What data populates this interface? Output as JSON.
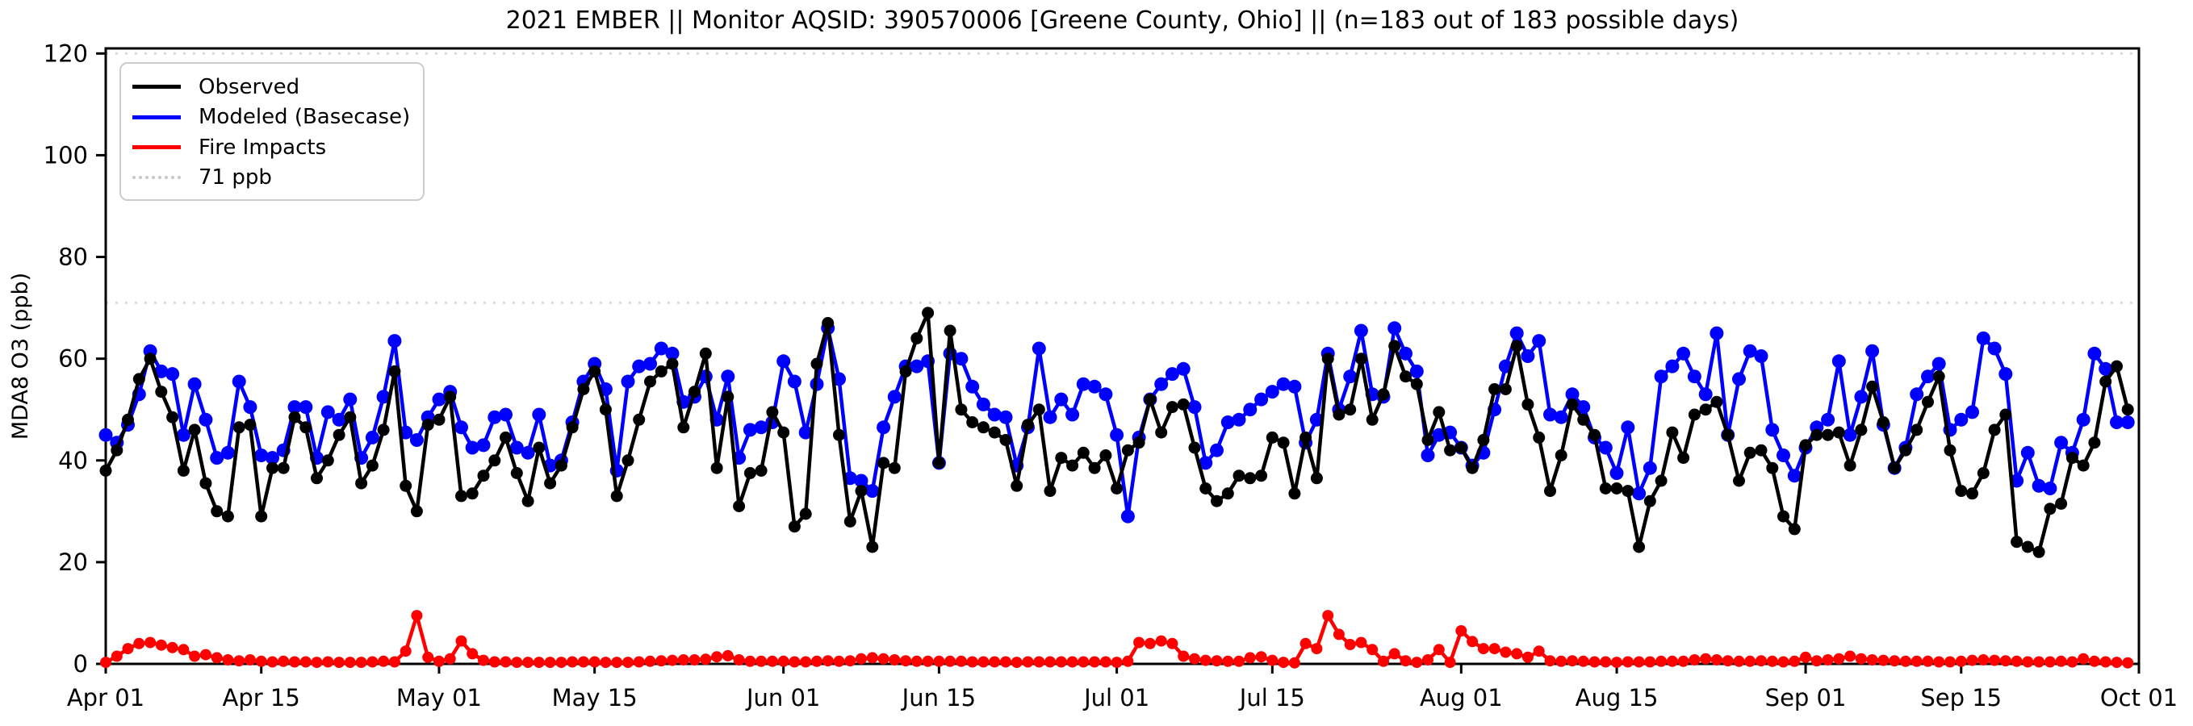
{
  "title": "2021 EMBER || Monitor AQSID: 390570006 [Greene County, Ohio] || (n=183 out of 183 possible days)",
  "colors": {
    "observed": "#000000",
    "modeled": "#0000ff",
    "fire": "#ff0000",
    "threshold": "#d9d9d9",
    "axis": "#000000"
  },
  "chart_data": {
    "type": "line",
    "x_start": "2021-04-01",
    "x_frequency": "daily",
    "n_points": 183,
    "title": "2021 EMBER || Monitor AQSID: 390570006 [Greene County, Ohio] || (n=183 out of 183 possible days)",
    "xlabel": "",
    "ylabel": "MDA8 O3 (ppb)",
    "ylim": [
      0,
      121
    ],
    "yticks": [
      0,
      20,
      40,
      60,
      80,
      100,
      120
    ],
    "xtick_labels": [
      "Apr 01",
      "Apr 15",
      "May 01",
      "May 15",
      "Jun 01",
      "Jun 15",
      "Jul 01",
      "Jul 15",
      "Aug 01",
      "Aug 15",
      "Sep 01",
      "Sep 15",
      "Oct 01"
    ],
    "xtick_days": [
      0,
      14,
      30,
      44,
      61,
      75,
      91,
      105,
      122,
      136,
      153,
      167,
      183
    ],
    "grid": false,
    "legend_position": "upper left",
    "reference_lines": [
      {
        "label": "71 ppb",
        "value": 71,
        "style": "dotted",
        "color": "#d9d9d9"
      },
      {
        "label": "",
        "value": 120,
        "style": "dotted",
        "color": "#d9d9d9"
      }
    ],
    "series": [
      {
        "name": "Observed",
        "color": "#000000",
        "values": [
          38,
          42,
          48,
          56,
          60,
          53.5,
          48.5,
          38,
          46,
          35.5,
          30,
          29,
          46.5,
          47,
          29,
          38.5,
          38.5,
          48.5,
          46.5,
          36.5,
          40,
          45,
          48.5,
          35.5,
          39,
          46,
          57.5,
          35,
          30,
          47,
          48,
          52.5,
          33,
          33.5,
          37,
          40,
          44.5,
          37.5,
          32,
          42.5,
          35.5,
          39,
          46.5,
          54,
          57.5,
          50,
          33,
          40,
          48,
          55.5,
          57.5,
          59,
          46.5,
          53.5,
          61,
          38.5,
          52.5,
          31,
          37.5,
          38,
          49.5,
          45.5,
          27,
          29.5,
          59,
          67,
          45,
          28,
          34,
          23,
          39.5,
          38.5,
          57.5,
          64,
          69,
          39.5,
          65.5,
          50,
          47.5,
          46.5,
          45.5,
          44,
          35,
          47,
          50,
          34,
          40.5,
          39,
          41.5,
          38.5,
          41,
          34.5,
          42,
          43.5,
          52,
          45.5,
          50.5,
          51,
          42.5,
          34.5,
          32,
          33.5,
          37,
          36.5,
          37,
          44.5,
          43.5,
          33.5,
          44.5,
          36.5,
          60,
          49,
          50,
          60,
          48,
          53,
          62.5,
          56.5,
          55,
          44,
          49.5,
          42,
          42.5,
          38.5,
          44,
          54,
          54,
          62.5,
          51,
          44.5,
          34,
          41,
          51,
          48,
          45,
          34.5,
          34.5,
          34,
          23,
          32,
          36,
          45.5,
          40.5,
          49,
          50,
          51.5,
          45,
          36,
          41.5,
          42,
          38.5,
          29,
          26.5,
          43,
          45,
          45,
          45.5,
          39,
          46,
          54.5,
          47.5,
          38.5,
          42,
          46,
          51.5,
          56.5,
          42,
          34,
          33.5,
          37.5,
          46,
          49,
          24,
          23,
          22,
          30.5,
          31.5,
          40.5,
          39,
          43.5,
          55.5,
          58.5,
          50
        ]
      },
      {
        "name": "Modeled (Basecase)",
        "color": "#0000ff",
        "values": [
          45,
          43.5,
          47,
          53,
          61.5,
          57.5,
          57,
          45,
          55,
          48,
          40.5,
          41.5,
          55.5,
          50.5,
          41,
          40.5,
          42,
          50.5,
          50.5,
          40.5,
          49.5,
          48,
          52,
          40.5,
          44.5,
          52.5,
          63.5,
          45.5,
          44,
          48.5,
          52,
          53.5,
          46.5,
          42.5,
          43,
          48.5,
          49,
          42.5,
          41.5,
          49,
          39,
          40,
          47.5,
          55.5,
          59,
          54,
          38,
          55.5,
          58.5,
          59,
          62,
          61,
          51.5,
          52.5,
          56.5,
          48,
          56.5,
          40.5,
          46,
          46.5,
          47.5,
          59.5,
          55.5,
          45.5,
          55,
          66,
          56,
          36.5,
          36,
          34,
          46.5,
          52.5,
          58.5,
          58.5,
          59.5,
          39.5,
          61,
          60,
          54.5,
          51,
          49,
          48.5,
          39,
          46.5,
          62,
          48.5,
          52,
          49,
          55,
          54.5,
          53,
          45,
          29,
          44.5,
          52,
          55,
          57,
          58,
          50.5,
          39.5,
          42,
          47.5,
          48,
          50,
          52,
          53.5,
          55,
          54.5,
          43.5,
          48,
          61,
          50,
          56.5,
          65.5,
          53,
          52.5,
          66,
          61,
          57.5,
          41,
          45,
          45.5,
          42.5,
          39,
          41.5,
          50,
          58.5,
          65,
          60.5,
          63.5,
          49,
          48.5,
          53,
          50.5,
          44.5,
          42.5,
          37.5,
          46.5,
          33.5,
          38.5,
          56.5,
          58.5,
          61,
          56.5,
          53,
          65,
          45,
          56,
          61.5,
          60.5,
          46,
          41,
          37,
          42.5,
          46.5,
          48,
          59.5,
          45,
          52.5,
          61.5,
          47,
          38.5,
          42.5,
          53,
          56.5,
          59,
          46,
          48,
          49.5,
          64,
          62,
          57,
          36,
          41.5,
          35,
          34.5,
          43.5,
          41.5,
          48,
          61,
          58,
          47.5,
          47.5
        ]
      },
      {
        "name": "Fire Impacts",
        "color": "#ff0000",
        "values": [
          0.3,
          1.5,
          3,
          4,
          4.2,
          3.7,
          3.2,
          2.8,
          1.5,
          1.8,
          1.2,
          0.8,
          0.6,
          0.8,
          0.5,
          0.4,
          0.5,
          0.4,
          0.4,
          0.3,
          0.4,
          0.3,
          0.3,
          0.3,
          0.4,
          0.5,
          0.4,
          2.5,
          9.5,
          1.3,
          0.5,
          1,
          4.5,
          2,
          0.7,
          0.4,
          0.4,
          0.3,
          0.3,
          0.3,
          0.3,
          0.3,
          0.4,
          0.4,
          0.4,
          0.3,
          0.3,
          0.3,
          0.4,
          0.5,
          0.6,
          0.7,
          0.8,
          0.8,
          0.9,
          1.4,
          1.6,
          0.8,
          0.5,
          0.5,
          0.5,
          0.5,
          0.4,
          0.4,
          0.5,
          0.6,
          0.5,
          0.6,
          1,
          1.2,
          1,
          0.8,
          0.6,
          0.5,
          0.5,
          0.5,
          0.5,
          0.5,
          0.4,
          0.4,
          0.4,
          0.4,
          0.3,
          0.4,
          0.4,
          0.4,
          0.4,
          0.4,
          0.4,
          0.4,
          0.4,
          0.3,
          0.5,
          4.2,
          4,
          4.5,
          4,
          1.5,
          1,
          0.7,
          0.6,
          0.5,
          0.5,
          1.2,
          1.4,
          0.7,
          0.3,
          0.2,
          4,
          3,
          9.5,
          5.8,
          3.8,
          4.2,
          2.8,
          0.5,
          2,
          0.6,
          0.3,
          0.8,
          2.8,
          0.3,
          6.5,
          4.4,
          3,
          3,
          2.3,
          2,
          1.3,
          2.5,
          0.6,
          0.5,
          0.6,
          0.5,
          0.4,
          0.4,
          0.3,
          0.4,
          0.4,
          0.4,
          0.5,
          0.5,
          0.5,
          0.8,
          1,
          0.8,
          0.6,
          0.5,
          0.5,
          0.6,
          0.5,
          0.4,
          0.5,
          1.3,
          0.6,
          0.8,
          1,
          1.5,
          1,
          0.8,
          0.7,
          0.6,
          0.5,
          0.5,
          0.5,
          0.4,
          0.4,
          0.5,
          0.7,
          0.8,
          0.7,
          0.6,
          0.5,
          0.4,
          0.4,
          0.4,
          0.5,
          0.4,
          1,
          0.5,
          0.4,
          0.3,
          0.2
        ]
      }
    ]
  },
  "legend": {
    "items": [
      {
        "label": "Observed"
      },
      {
        "label": "Modeled (Basecase)"
      },
      {
        "label": "Fire Impacts"
      },
      {
        "label": "71 ppb"
      }
    ]
  }
}
